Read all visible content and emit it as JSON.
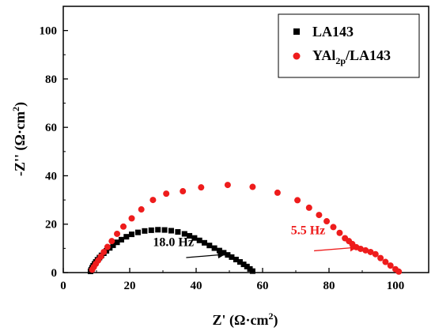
{
  "chart_data": {
    "type": "scatter",
    "xlabel": "Z' (Ω·cm²)",
    "ylabel": "-Z'' (Ω·cm²)",
    "xlim": [
      0,
      110
    ],
    "ylim": [
      0,
      110
    ],
    "xticks": [
      0,
      20,
      40,
      60,
      80,
      100
    ],
    "yticks": [
      0,
      20,
      40,
      60,
      80,
      100
    ],
    "legend_position": "top-right",
    "series": [
      {
        "name": "LA143",
        "marker": "square",
        "color": "#000000",
        "points": [
          [
            8.2,
            0.5
          ],
          [
            8.4,
            1.2
          ],
          [
            8.7,
            2.0
          ],
          [
            9.0,
            2.8
          ],
          [
            9.4,
            3.6
          ],
          [
            9.8,
            4.4
          ],
          [
            10.3,
            5.3
          ],
          [
            10.9,
            6.2
          ],
          [
            11.5,
            7.1
          ],
          [
            12.2,
            8.0
          ],
          [
            13.0,
            9.0
          ],
          [
            14.0,
            10.2
          ],
          [
            15.0,
            11.3
          ],
          [
            16.2,
            12.5
          ],
          [
            17.5,
            13.6
          ],
          [
            19.0,
            14.8
          ],
          [
            20.6,
            15.8
          ],
          [
            22.5,
            16.6
          ],
          [
            24.5,
            17.2
          ],
          [
            26.5,
            17.5
          ],
          [
            28.5,
            17.7
          ],
          [
            30.5,
            17.6
          ],
          [
            32.5,
            17.3
          ],
          [
            34.5,
            16.8
          ],
          [
            36.5,
            16.0
          ],
          [
            38.0,
            15.2
          ],
          [
            39.5,
            14.3
          ],
          [
            41.0,
            13.3
          ],
          [
            42.5,
            12.3
          ],
          [
            44.0,
            11.2
          ],
          [
            45.5,
            10.1
          ],
          [
            47.0,
            9.1
          ],
          [
            48.3,
            8.2
          ],
          [
            49.5,
            7.3
          ],
          [
            50.7,
            6.4
          ],
          [
            52.0,
            5.4
          ],
          [
            53.2,
            4.4
          ],
          [
            54.3,
            3.4
          ],
          [
            55.3,
            2.5
          ],
          [
            56.2,
            1.5
          ],
          [
            57.0,
            0.6
          ]
        ]
      },
      {
        "name": "YAl2p/LA143",
        "marker": "circle",
        "color": "#ee1c1c",
        "points": [
          [
            8.7,
            1.2
          ],
          [
            9.2,
            2.3
          ],
          [
            9.8,
            3.6
          ],
          [
            10.5,
            5.0
          ],
          [
            11.3,
            6.6
          ],
          [
            12.2,
            8.5
          ],
          [
            13.3,
            10.6
          ],
          [
            14.6,
            13.0
          ],
          [
            16.2,
            16.0
          ],
          [
            18.1,
            19.0
          ],
          [
            20.6,
            22.4
          ],
          [
            23.5,
            26.1
          ],
          [
            27.0,
            30.0
          ],
          [
            31.0,
            32.6
          ],
          [
            36.0,
            33.6
          ],
          [
            41.5,
            35.2
          ],
          [
            49.5,
            36.2
          ],
          [
            57.0,
            35.4
          ],
          [
            64.5,
            33.0
          ],
          [
            70.5,
            29.9
          ],
          [
            74.0,
            26.8
          ],
          [
            77.0,
            23.8
          ],
          [
            79.3,
            21.2
          ],
          [
            81.3,
            18.8
          ],
          [
            83.2,
            16.4
          ],
          [
            84.8,
            14.2
          ],
          [
            86.0,
            13.0
          ],
          [
            87.0,
            11.8
          ],
          [
            88.2,
            10.5
          ],
          [
            89.5,
            9.8
          ],
          [
            91.0,
            9.2
          ],
          [
            92.5,
            8.5
          ],
          [
            94.0,
            7.6
          ],
          [
            95.5,
            6.0
          ],
          [
            97.0,
            4.4
          ],
          [
            98.5,
            2.9
          ],
          [
            100.0,
            1.4
          ],
          [
            101.0,
            0.4
          ]
        ]
      }
    ],
    "annotations": [
      {
        "text": "18.0 Hz",
        "color": "#000000",
        "label_at": [
          27,
          11
        ],
        "arrow_from": [
          37,
          6.2
        ],
        "arrow_to": [
          48.5,
          7.5
        ]
      },
      {
        "text": "5.5 Hz",
        "color": "#ee1c1c",
        "label_at": [
          68.5,
          15.8
        ],
        "arrow_from": [
          75.5,
          9.0
        ],
        "arrow_to": [
          88.3,
          10.4
        ]
      }
    ]
  }
}
